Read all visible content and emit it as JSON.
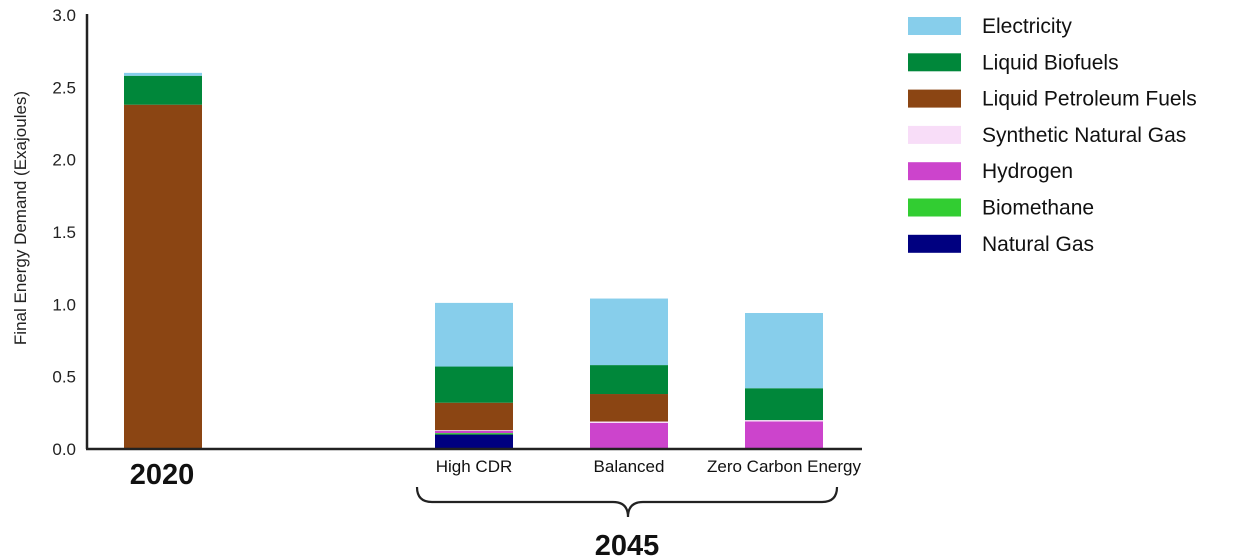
{
  "chart_data": {
    "type": "bar",
    "stacked": true,
    "categories": [
      "",
      "High CDR",
      "Balanced",
      "Zero Carbon Energy"
    ],
    "groups": [
      {
        "label": "2020",
        "categories": [
          ""
        ]
      },
      {
        "label": "2045",
        "categories": [
          "High CDR",
          "Balanced",
          "Zero Carbon Energy"
        ]
      }
    ],
    "series": [
      {
        "name": "Natural Gas",
        "color": "#000080",
        "values": [
          0,
          0.1,
          0,
          0
        ]
      },
      {
        "name": "Biomethane",
        "color": "#32CD32",
        "values": [
          0,
          0.01,
          0,
          0
        ]
      },
      {
        "name": "Hydrogen",
        "color": "#CC44CC",
        "values": [
          0,
          0.015,
          0.18,
          0.19
        ]
      },
      {
        "name": "Synthetic Natural Gas",
        "color": "#F8DDF8",
        "values": [
          0,
          0.005,
          0.01,
          0.01
        ]
      },
      {
        "name": "Liquid Petroleum Fuels",
        "color": "#8B4513",
        "values": [
          2.38,
          0.19,
          0.19,
          0
        ]
      },
      {
        "name": "Liquid Biofuels",
        "color": "#00873A",
        "values": [
          0.2,
          0.25,
          0.2,
          0.22
        ]
      },
      {
        "name": "Electricity",
        "color": "#87CEEB",
        "values": [
          0.02,
          0.44,
          0.46,
          0.52
        ]
      }
    ],
    "legend_order": [
      "Electricity",
      "Liquid Biofuels",
      "Liquid Petroleum Fuels",
      "Synthetic Natural Gas",
      "Hydrogen",
      "Biomethane",
      "Natural Gas"
    ],
    "ylabel": "Final Energy Demand (Exajoules)",
    "xlabel": "",
    "ylim": [
      0,
      3.0
    ],
    "yticks": [
      "0.0",
      "0.5",
      "1.0",
      "1.5",
      "2.0",
      "2.5",
      "3.0"
    ],
    "grid": false,
    "legend_position": "right"
  }
}
